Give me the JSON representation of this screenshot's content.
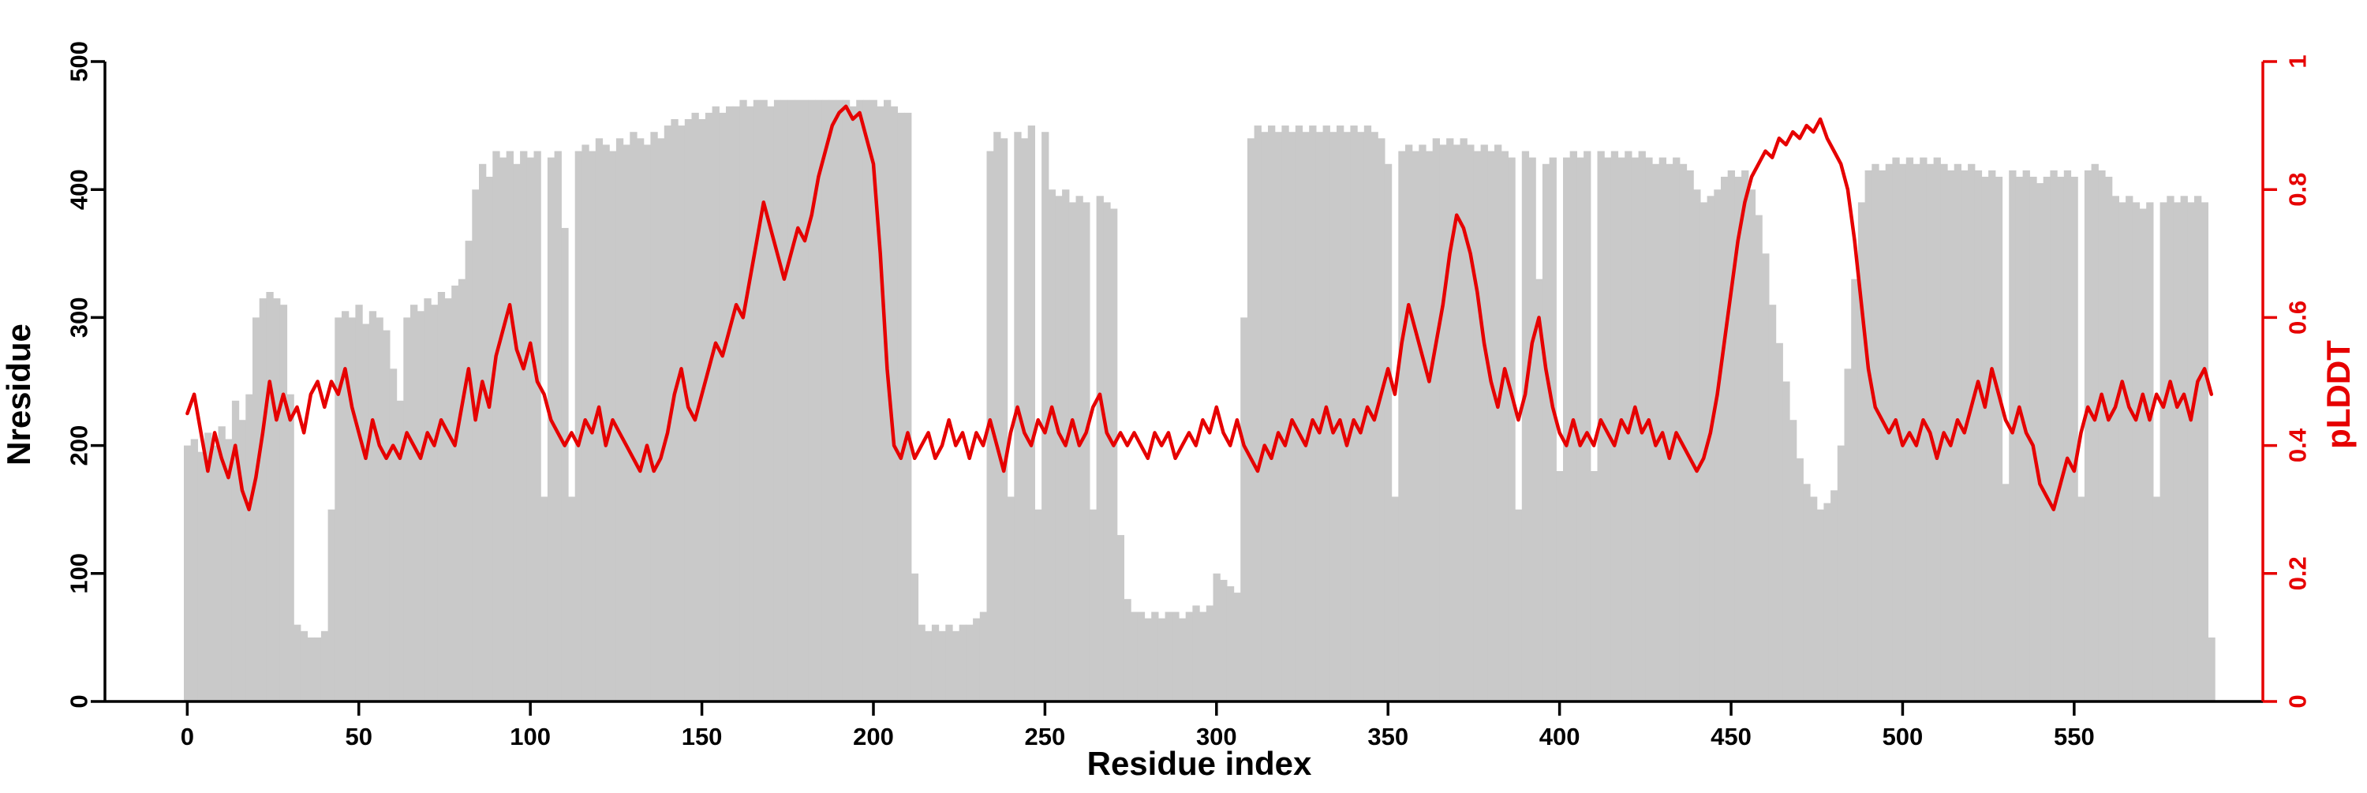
{
  "chart_data": {
    "type": "bar",
    "title": "",
    "xlabel": "Residue index",
    "ylabel_left": "Nresidue",
    "ylabel_right": "pLDDT",
    "xlim": [
      -24,
      605
    ],
    "ylim_left": [
      0,
      500
    ],
    "ylim_right": [
      0,
      1
    ],
    "x_ticks": [
      0,
      50,
      100,
      150,
      200,
      250,
      300,
      350,
      400,
      450,
      500,
      550
    ],
    "y_left_ticks": [
      0,
      100,
      200,
      300,
      400,
      500
    ],
    "y_right_ticks": [
      0,
      0.2,
      0.4,
      0.6,
      0.8,
      1
    ],
    "grid": false,
    "legend": "none",
    "colors": {
      "bar": "#c9c9c9",
      "line": "#e60000",
      "axis": "#000000",
      "right_axis": "#e60000"
    },
    "x_start": 0,
    "x_step": 2,
    "series": [
      {
        "name": "Nresidue",
        "type": "bar",
        "axis": "left",
        "values": [
          200,
          205,
          195,
          210,
          200,
          215,
          205,
          235,
          220,
          240,
          300,
          315,
          320,
          315,
          310,
          240,
          60,
          55,
          50,
          50,
          55,
          150,
          300,
          305,
          300,
          310,
          295,
          305,
          300,
          290,
          260,
          235,
          300,
          310,
          305,
          315,
          310,
          320,
          315,
          325,
          330,
          360,
          400,
          420,
          410,
          430,
          425,
          430,
          420,
          430,
          425,
          430,
          160,
          425,
          430,
          370,
          160,
          430,
          435,
          430,
          440,
          435,
          430,
          440,
          435,
          445,
          440,
          435,
          445,
          440,
          450,
          455,
          450,
          455,
          460,
          455,
          460,
          465,
          460,
          465,
          465,
          470,
          465,
          470,
          470,
          465,
          470,
          470,
          470,
          470,
          470,
          470,
          470,
          470,
          470,
          470,
          470,
          465,
          470,
          470,
          470,
          465,
          470,
          465,
          460,
          460,
          100,
          60,
          55,
          60,
          55,
          60,
          55,
          60,
          60,
          65,
          70,
          430,
          445,
          440,
          160,
          445,
          440,
          450,
          150,
          445,
          400,
          395,
          400,
          390,
          395,
          390,
          150,
          395,
          390,
          385,
          130,
          80,
          70,
          70,
          65,
          70,
          65,
          70,
          70,
          65,
          70,
          75,
          70,
          75,
          100,
          95,
          90,
          85,
          300,
          440,
          450,
          445,
          450,
          445,
          450,
          445,
          450,
          445,
          450,
          445,
          450,
          445,
          450,
          445,
          450,
          445,
          450,
          445,
          440,
          420,
          160,
          430,
          435,
          430,
          435,
          430,
          440,
          435,
          440,
          435,
          440,
          435,
          430,
          435,
          430,
          435,
          430,
          425,
          150,
          430,
          425,
          330,
          420,
          425,
          180,
          425,
          430,
          425,
          430,
          180,
          430,
          425,
          430,
          425,
          430,
          425,
          430,
          425,
          420,
          425,
          420,
          425,
          420,
          415,
          400,
          390,
          395,
          400,
          410,
          415,
          410,
          415,
          400,
          380,
          350,
          310,
          280,
          250,
          220,
          190,
          170,
          160,
          150,
          155,
          165,
          200,
          260,
          330,
          390,
          415,
          420,
          415,
          420,
          425,
          420,
          425,
          420,
          425,
          420,
          425,
          420,
          415,
          420,
          415,
          420,
          415,
          410,
          415,
          410,
          170,
          415,
          410,
          415,
          410,
          405,
          410,
          415,
          410,
          415,
          410,
          160,
          415,
          420,
          415,
          410,
          395,
          390,
          395,
          390,
          385,
          390,
          160,
          390,
          395,
          390,
          395,
          390,
          395,
          390,
          50
        ]
      },
      {
        "name": "pLDDT",
        "type": "line",
        "axis": "right",
        "values": [
          0.45,
          0.48,
          0.42,
          0.36,
          0.42,
          0.38,
          0.35,
          0.4,
          0.33,
          0.3,
          0.35,
          0.42,
          0.5,
          0.44,
          0.48,
          0.44,
          0.46,
          0.42,
          0.48,
          0.5,
          0.46,
          0.5,
          0.48,
          0.52,
          0.46,
          0.42,
          0.38,
          0.44,
          0.4,
          0.38,
          0.4,
          0.38,
          0.42,
          0.4,
          0.38,
          0.42,
          0.4,
          0.44,
          0.42,
          0.4,
          0.46,
          0.52,
          0.44,
          0.5,
          0.46,
          0.54,
          0.58,
          0.62,
          0.55,
          0.52,
          0.56,
          0.5,
          0.48,
          0.44,
          0.42,
          0.4,
          0.42,
          0.4,
          0.44,
          0.42,
          0.46,
          0.4,
          0.44,
          0.42,
          0.4,
          0.38,
          0.36,
          0.4,
          0.36,
          0.38,
          0.42,
          0.48,
          0.52,
          0.46,
          0.44,
          0.48,
          0.52,
          0.56,
          0.54,
          0.58,
          0.62,
          0.6,
          0.66,
          0.72,
          0.78,
          0.74,
          0.7,
          0.66,
          0.7,
          0.74,
          0.72,
          0.76,
          0.82,
          0.86,
          0.9,
          0.92,
          0.93,
          0.91,
          0.92,
          0.88,
          0.84,
          0.7,
          0.52,
          0.4,
          0.38,
          0.42,
          0.38,
          0.4,
          0.42,
          0.38,
          0.4,
          0.44,
          0.4,
          0.42,
          0.38,
          0.42,
          0.4,
          0.44,
          0.4,
          0.36,
          0.42,
          0.46,
          0.42,
          0.4,
          0.44,
          0.42,
          0.46,
          0.42,
          0.4,
          0.44,
          0.4,
          0.42,
          0.46,
          0.48,
          0.42,
          0.4,
          0.42,
          0.4,
          0.42,
          0.4,
          0.38,
          0.42,
          0.4,
          0.42,
          0.38,
          0.4,
          0.42,
          0.4,
          0.44,
          0.42,
          0.46,
          0.42,
          0.4,
          0.44,
          0.4,
          0.38,
          0.36,
          0.4,
          0.38,
          0.42,
          0.4,
          0.44,
          0.42,
          0.4,
          0.44,
          0.42,
          0.46,
          0.42,
          0.44,
          0.4,
          0.44,
          0.42,
          0.46,
          0.44,
          0.48,
          0.52,
          0.48,
          0.56,
          0.62,
          0.58,
          0.54,
          0.5,
          0.56,
          0.62,
          0.7,
          0.76,
          0.74,
          0.7,
          0.64,
          0.56,
          0.5,
          0.46,
          0.52,
          0.48,
          0.44,
          0.48,
          0.56,
          0.6,
          0.52,
          0.46,
          0.42,
          0.4,
          0.44,
          0.4,
          0.42,
          0.4,
          0.44,
          0.42,
          0.4,
          0.44,
          0.42,
          0.46,
          0.42,
          0.44,
          0.4,
          0.42,
          0.38,
          0.42,
          0.4,
          0.38,
          0.36,
          0.38,
          0.42,
          0.48,
          0.56,
          0.64,
          0.72,
          0.78,
          0.82,
          0.84,
          0.86,
          0.85,
          0.88,
          0.87,
          0.89,
          0.88,
          0.9,
          0.89,
          0.91,
          0.88,
          0.86,
          0.84,
          0.8,
          0.72,
          0.62,
          0.52,
          0.46,
          0.44,
          0.42,
          0.44,
          0.4,
          0.42,
          0.4,
          0.44,
          0.42,
          0.38,
          0.42,
          0.4,
          0.44,
          0.42,
          0.46,
          0.5,
          0.46,
          0.52,
          0.48,
          0.44,
          0.42,
          0.46,
          0.42,
          0.4,
          0.34,
          0.32,
          0.3,
          0.34,
          0.38,
          0.36,
          0.42,
          0.46,
          0.44,
          0.48,
          0.44,
          0.46,
          0.5,
          0.46,
          0.44,
          0.48,
          0.44,
          0.48,
          0.46,
          0.5,
          0.46,
          0.48,
          0.44,
          0.5,
          0.52,
          0.48
        ]
      }
    ]
  }
}
